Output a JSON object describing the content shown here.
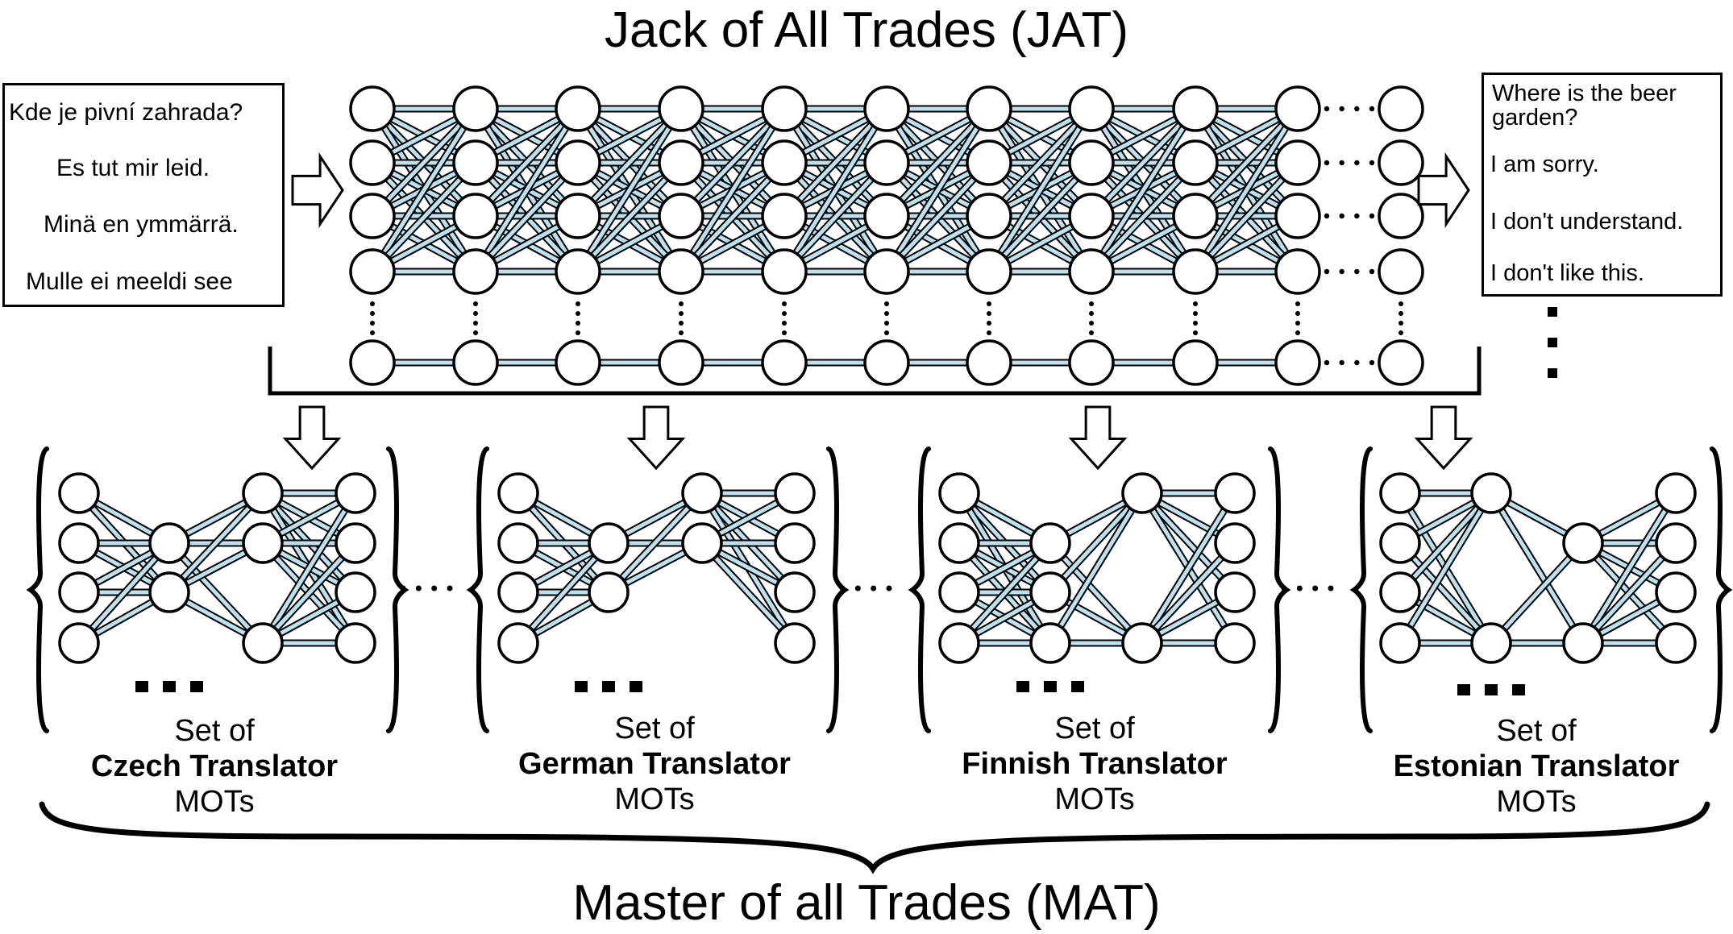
{
  "top_title": "Jack of All Trades (JAT)",
  "bottom_title": "Master of all Trades (MAT)",
  "input_sentences": [
    "Kde je pivní zahrada?",
    "Es tut mir leid.",
    "Minä en ymmärrä.",
    "Mulle ei meeldi see"
  ],
  "output_sentences": [
    "Where is the beer garden?",
    "I am sorry.",
    "I don't understand.",
    "I don't like this."
  ],
  "mot_sets": [
    {
      "prefix": "Set of",
      "name": "Czech Translator",
      "suffix": "MOTs"
    },
    {
      "prefix": "Set of",
      "name": "German Translator",
      "suffix": "MOTs"
    },
    {
      "prefix": "Set of",
      "name": "Finnish Translator",
      "suffix": "MOTs"
    },
    {
      "prefix": "Set of",
      "name": "Estonian Translator",
      "suffix": "MOTs"
    }
  ],
  "colors": {
    "connection": "#bfe0ee",
    "outline": "#000000",
    "node_fill": "#ffffff"
  }
}
